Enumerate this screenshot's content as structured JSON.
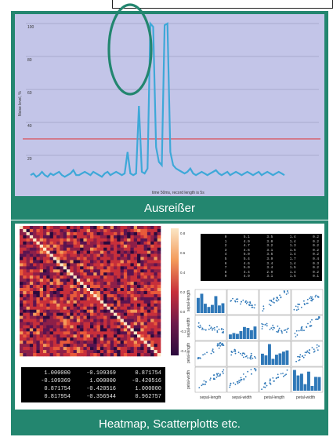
{
  "slides": [
    {
      "caption": "Ausreißer",
      "ylabel": "Noise level, %",
      "xlabel": "time 50ms, record length is 5s",
      "yticks": [
        "100",
        "80",
        "60",
        "40",
        "20"
      ],
      "threshold": 30,
      "highlight": "outlier-peaks",
      "chart_data": {
        "type": "line",
        "ylim": [
          0,
          100
        ],
        "y": [
          8,
          9,
          7,
          8,
          10,
          8,
          7,
          9,
          8,
          9,
          10,
          8,
          7,
          8,
          9,
          11,
          8,
          8,
          9,
          10,
          9,
          8,
          10,
          9,
          8,
          7,
          9,
          10,
          8,
          9,
          10,
          9,
          8,
          9,
          22,
          9,
          8,
          9,
          50,
          10,
          9,
          12,
          100,
          98,
          25,
          16,
          14,
          99,
          100,
          22,
          14,
          12,
          11,
          10,
          9,
          10,
          12,
          9,
          8,
          9,
          10,
          9,
          8,
          9,
          10,
          11,
          9,
          8,
          9,
          10,
          8,
          9,
          10,
          9,
          8,
          9,
          10,
          9,
          8,
          9,
          10,
          8,
          9,
          10,
          9,
          8,
          9,
          10,
          9,
          8
        ]
      }
    },
    {
      "caption": "Heatmap, Scatterplotts etc.",
      "colorbar_ticks": [
        "0.8",
        "0.6",
        "0.4",
        "0.2",
        "0.0",
        "-0.2",
        "-0.4"
      ],
      "table_rows": [
        [
          "1.000000",
          "-0.109369",
          "0.871754"
        ],
        [
          "-0.109369",
          "1.000000",
          "-0.420516"
        ],
        [
          "0.871754",
          "-0.420516",
          "1.000000"
        ],
        [
          "0.817954",
          "-0.356544",
          "0.962757"
        ]
      ],
      "scatter_labels": [
        "sepal-length",
        "sepal-width",
        "petal-length",
        "petal-width"
      ],
      "dataframe_rows": [
        [
          "0",
          "5.1",
          "3.5",
          "1.4",
          "0.2"
        ],
        [
          "1",
          "4.9",
          "3.0",
          "1.4",
          "0.2"
        ],
        [
          "2",
          "4.7",
          "3.2",
          "1.3",
          "0.2"
        ],
        [
          "3",
          "4.6",
          "3.1",
          "1.5",
          "0.2"
        ],
        [
          "4",
          "5.0",
          "3.6",
          "1.4",
          "0.2"
        ],
        [
          "5",
          "5.4",
          "3.9",
          "1.7",
          "0.4"
        ],
        [
          "6",
          "4.6",
          "3.4",
          "1.4",
          "0.3"
        ],
        [
          "7",
          "5.0",
          "3.4",
          "1.5",
          "0.2"
        ],
        [
          "8",
          "4.4",
          "2.9",
          "1.4",
          "0.2"
        ],
        [
          "9",
          "4.9",
          "3.1",
          "1.5",
          "0.1"
        ]
      ],
      "colors": {
        "heat_low": "#2b0a3d",
        "heat_mid": "#c72f3a",
        "heat_high": "#fbe6c5",
        "scatter": "#2f78b8"
      }
    }
  ],
  "colors": {
    "panel": "#23866f",
    "plot_bg": "#c3c5e8",
    "line": "#3ea8d8",
    "threshold": "#e03030",
    "highlight": "#23866f"
  }
}
